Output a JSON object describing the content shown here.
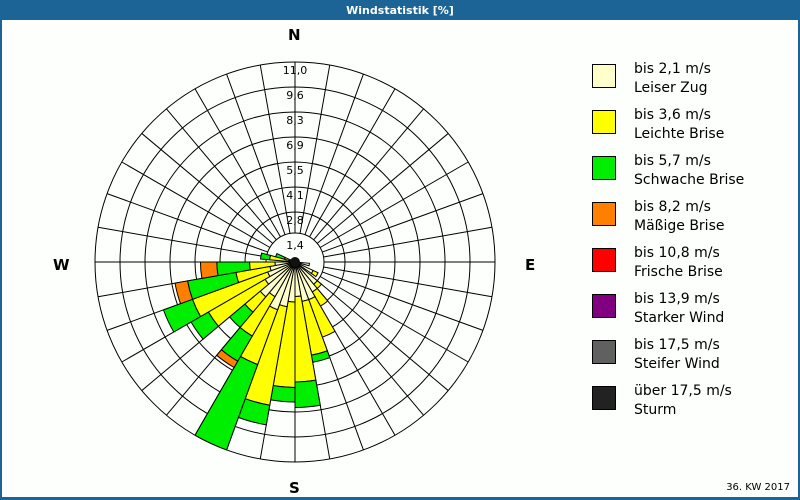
{
  "title": "Windstatistik [%]",
  "footer": "36. KW 2017",
  "directions": {
    "n": "N",
    "e": "E",
    "s": "S",
    "w": "W"
  },
  "legend": [
    {
      "range": "bis 2,1 m/s",
      "name": "Leiser Zug",
      "color": "#ffffcc"
    },
    {
      "range": "bis 3,6 m/s",
      "name": "Leichte Brise",
      "color": "#ffff00"
    },
    {
      "range": "bis 5,7 m/s",
      "name": "Schwache Brise",
      "color": "#00ee00"
    },
    {
      "range": "bis 8,2 m/s",
      "name": "Mäßige Brise",
      "color": "#ff8000"
    },
    {
      "range": "bis 10,8 m/s",
      "name": "Frische Brise",
      "color": "#ff0000"
    },
    {
      "range": "bis 13,9 m/s",
      "name": "Starker Wind",
      "color": "#800080"
    },
    {
      "range": "bis 17,5 m/s",
      "name": "Steifer Wind",
      "color": "#606060"
    },
    {
      "range": "über 17,5 m/s",
      "name": "Sturm",
      "color": "#222222"
    }
  ],
  "chart_data": {
    "type": "windrose",
    "title": "Windstatistik [%]",
    "rings": [
      "1,4",
      "2,8",
      "4,1",
      "5,5",
      "6,9",
      "8,3",
      "9,6",
      "11,0"
    ],
    "ring_values": [
      1.4,
      2.8,
      4.1,
      5.5,
      6.9,
      8.3,
      9.6,
      11.0
    ],
    "rmax": 11.0,
    "sector_width_deg": 10,
    "classes": [
      "bis 2,1 m/s",
      "bis 3,6 m/s",
      "bis 5,7 m/s",
      "bis 8,2 m/s"
    ],
    "colors": [
      "#ffffcc",
      "#ffff00",
      "#00ee00",
      "#ff8000"
    ],
    "petals_cumulative_percent": [
      {
        "bearing": 100,
        "values": [
          0.8
        ]
      },
      {
        "bearing": 120,
        "values": [
          1.1,
          1.4
        ]
      },
      {
        "bearing": 135,
        "values": [
          1.6,
          1.9
        ]
      },
      {
        "bearing": 145,
        "values": [
          1.9,
          2.8
        ]
      },
      {
        "bearing": 155,
        "values": [
          2.2,
          4.4
        ]
      },
      {
        "bearing": 165,
        "values": [
          2.2,
          5.2,
          5.6
        ]
      },
      {
        "bearing": 175,
        "values": [
          1.9,
          6.6,
          8.0
        ]
      },
      {
        "bearing": 185,
        "values": [
          2.2,
          6.9,
          7.7
        ]
      },
      {
        "bearing": 195,
        "values": [
          2.5,
          8.0,
          9.1
        ]
      },
      {
        "bearing": 205,
        "values": [
          2.8,
          6.0,
          11.0
        ]
      },
      {
        "bearing": 215,
        "values": [
          2.2,
          4.7,
          6.3,
          6.7
        ]
      },
      {
        "bearing": 225,
        "values": [
          2.5,
          3.6,
          4.7
        ]
      },
      {
        "bearing": 235,
        "values": [
          1.9,
          5.5,
          6.6
        ]
      },
      {
        "bearing": 245,
        "values": [
          1.6,
          6.0,
          7.7
        ]
      },
      {
        "bearing": 255,
        "values": [
          1.4,
          3.3,
          6.0,
          6.7
        ]
      },
      {
        "bearing": 265,
        "values": [
          1.1,
          2.5,
          4.3,
          5.2
        ]
      },
      {
        "bearing": 280,
        "values": [
          0.5,
          1.4,
          1.9
        ]
      },
      {
        "bearing": 290,
        "values": [
          0.3,
          0.6,
          1.1
        ]
      }
    ],
    "direction_labels": [
      "N",
      "E",
      "S",
      "W"
    ],
    "legend_position": "right"
  }
}
